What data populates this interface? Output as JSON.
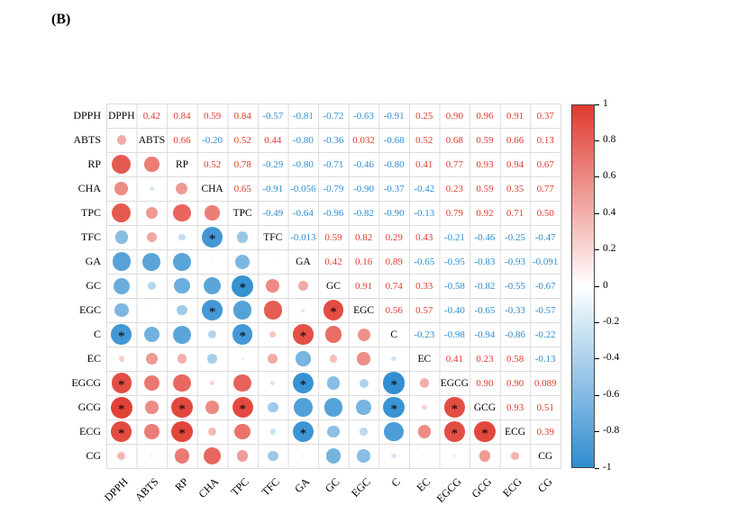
{
  "panel_label": "(B)",
  "colors": {
    "positive": "#e03a2f",
    "negative": "#2f8dd0",
    "grid": "#dcdcdc",
    "text": "#000000"
  },
  "chart_data": {
    "type": "heatmap",
    "subtype": "correlation-matrix-circles",
    "title": "",
    "value_range": [
      -1,
      1
    ],
    "grid": true,
    "legend_position": "right",
    "labels": [
      "DPPH",
      "ABTS",
      "RP",
      "CHA",
      "TPC",
      "TFC",
      "GA",
      "GC",
      "EGC",
      "C",
      "EC",
      "EGCG",
      "GCG",
      "ECG",
      "CG"
    ],
    "matrix": [
      [
        null,
        "0.42",
        "0.84",
        "0.59",
        "0.84",
        "-0.57",
        "-0.81",
        "-0.72",
        "-0.63",
        "-0.91",
        "0.25",
        "0.90",
        "0.96",
        "0.91",
        "0.37"
      ],
      [
        "0.42",
        null,
        "0.66",
        "-0.20",
        "0.52",
        "0.44",
        "-0.80",
        "-0.36",
        "0.032",
        "-0.68",
        "0.52",
        "0.68",
        "0.59",
        "0.66",
        "0.13"
      ],
      [
        "0.84",
        "0.66",
        null,
        "0.52",
        "0.78",
        "-0.29",
        "-0.80",
        "-0.71",
        "-0.46",
        "-0.80",
        "0.41",
        "0.77",
        "0.93",
        "0.94",
        "0.67"
      ],
      [
        "0.59",
        "-0.20",
        "0.52",
        null,
        "0.65",
        "-0.91",
        "-0.056",
        "-0.79",
        "-0.90",
        "-0.37",
        "-0.42",
        "0.23",
        "0.59",
        "0.35",
        "0.77"
      ],
      [
        "0.84",
        "0.52",
        "0.78",
        "0.65",
        null,
        "-0.49",
        "-0.64",
        "-0.96",
        "-0.82",
        "-0.90",
        "-0.13",
        "0.79",
        "0.92",
        "0.71",
        "0.50"
      ],
      [
        "-0.57",
        "0.44",
        "-0.29",
        "-0.91",
        "-0.49",
        null,
        "-0.013",
        "0.59",
        "0.82",
        "0.29",
        "0.43",
        "-0.21",
        "-0.46",
        "-0.25",
        "-0.47"
      ],
      [
        "-0.81",
        "-0.80",
        "-0.80",
        "-0.056",
        "-0.64",
        "-0.013",
        null,
        "0.42",
        "0.16",
        "0.89",
        "-0.65",
        "-0.95",
        "-0.83",
        "-0.93",
        "-0.091"
      ],
      [
        "-0.72",
        "-0.36",
        "-0.71",
        "-0.79",
        "-0.96",
        "0.59",
        "0.42",
        null,
        "0.91",
        "0.74",
        "0.33",
        "-0.58",
        "-0.82",
        "-0.55",
        "-0.67"
      ],
      [
        "-0.63",
        "0.032",
        "-0.46",
        "-0.90",
        "-0.82",
        "0.82",
        "0.16",
        "0.91",
        null,
        "0.56",
        "0.57",
        "-0.40",
        "-0.65",
        "-0.33",
        "-0.57"
      ],
      [
        "-0.91",
        "-0.68",
        "-0.80",
        "-0.37",
        "-0.90",
        "0.29",
        "0.89",
        "0.74",
        "0.56",
        null,
        "-0.23",
        "-0.98",
        "-0.94",
        "-0.86",
        "-0.22"
      ],
      [
        "0.25",
        "0.52",
        "0.41",
        "-0.42",
        "-0.13",
        "0.43",
        "-0.65",
        "0.33",
        "0.57",
        "-0.23",
        null,
        "0.41",
        "0.23",
        "0.58",
        "-0.13"
      ],
      [
        "0.90",
        "0.68",
        "0.77",
        "0.23",
        "0.79",
        "-0.21",
        "-0.95",
        "-0.58",
        "-0.40",
        "-0.98",
        "0.41",
        null,
        "0.90",
        "0.90",
        "0.089"
      ],
      [
        "0.96",
        "0.59",
        "0.93",
        "0.59",
        "0.92",
        "-0.46",
        "-0.83",
        "-0.82",
        "-0.65",
        "-0.94",
        "0.23",
        "0.90",
        null,
        "0.93",
        "0.51"
      ],
      [
        "0.91",
        "0.66",
        "0.94",
        "0.35",
        "0.71",
        "-0.25",
        "-0.93",
        "-0.55",
        "-0.33",
        "-0.86",
        "0.58",
        "0.90",
        "0.93",
        null,
        "0.39"
      ],
      [
        "0.37",
        "0.13",
        "0.67",
        "0.77",
        "0.50",
        "-0.47",
        "-0.091",
        "-0.67",
        "-0.57",
        "-0.22",
        "-0.13",
        "0.089",
        "0.51",
        "0.39",
        null
      ]
    ],
    "significance_marker": "*",
    "significant_pairs": [
      [
        "DPPH",
        "C"
      ],
      [
        "DPPH",
        "EGCG"
      ],
      [
        "DPPH",
        "GCG"
      ],
      [
        "DPPH",
        "ECG"
      ],
      [
        "RP",
        "GCG"
      ],
      [
        "RP",
        "ECG"
      ],
      [
        "CHA",
        "TFC"
      ],
      [
        "CHA",
        "EGC"
      ],
      [
        "TPC",
        "GC"
      ],
      [
        "TPC",
        "C"
      ],
      [
        "TPC",
        "GCG"
      ],
      [
        "GA",
        "C"
      ],
      [
        "GA",
        "EGCG"
      ],
      [
        "GA",
        "ECG"
      ],
      [
        "GC",
        "EGC"
      ],
      [
        "C",
        "EGCG"
      ],
      [
        "C",
        "GCG"
      ],
      [
        "EGCG",
        "GCG"
      ],
      [
        "EGCG",
        "ECG"
      ],
      [
        "GCG",
        "ECG"
      ]
    ],
    "colorbar": {
      "tick_labels": [
        "1",
        "0.8",
        "0.6",
        "0.4",
        "0.2",
        "0",
        "-0.2",
        "-0.4",
        "-0.6",
        "-0.8",
        "-1"
      ],
      "max": 1,
      "min": -1
    }
  }
}
